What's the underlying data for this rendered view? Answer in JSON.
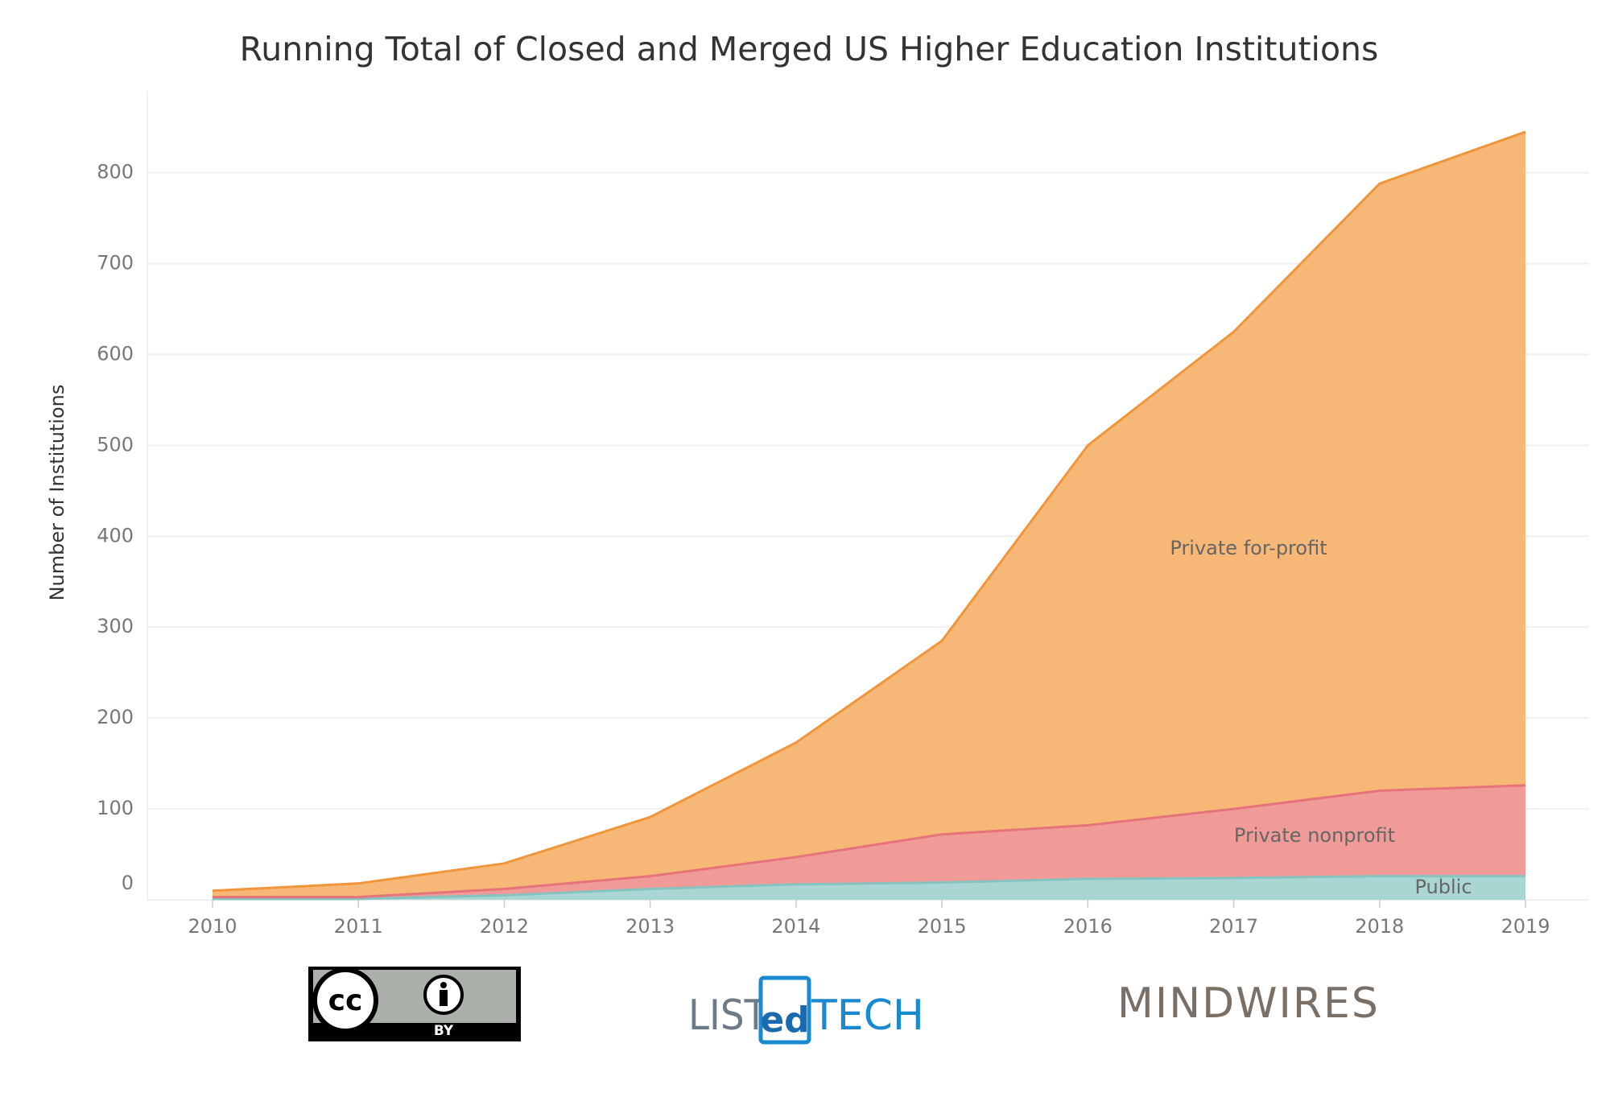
{
  "chart_data": {
    "type": "stacked_area",
    "title": "Running Total of Closed and Merged US Higher Education Institutions",
    "y_label": "Number of Institutions",
    "categories": [
      "2010",
      "2011",
      "2012",
      "2013",
      "2014",
      "2015",
      "2016",
      "2017",
      "2018",
      "2019"
    ],
    "series": [
      {
        "name": "Public",
        "color": "#a9d5d3",
        "line_color": "#86c3c0",
        "values": [
          1,
          1,
          5,
          12,
          17,
          19,
          23,
          24,
          26,
          26
        ]
      },
      {
        "name": "Private nonprofit",
        "color": "#f09b98",
        "line_color": "#e5737a",
        "values": [
          2,
          2,
          7,
          14,
          30,
          53,
          59,
          76,
          94,
          100
        ]
      },
      {
        "name": "Private for-profit",
        "color": "#f7b877",
        "line_color": "#f0953a",
        "values": [
          7,
          15,
          28,
          65,
          126,
          213,
          418,
          525,
          668,
          719
        ]
      }
    ],
    "ylim": [
      0,
      890
    ],
    "yticks": [
      0,
      100,
      200,
      300,
      400,
      500,
      600,
      700,
      800
    ],
    "grid": true
  },
  "logos": {
    "cc": "cc",
    "by": "BY",
    "list": "LIST",
    "ed": "ed",
    "tech": "TECH",
    "mindwires": "MINDWIRES"
  }
}
